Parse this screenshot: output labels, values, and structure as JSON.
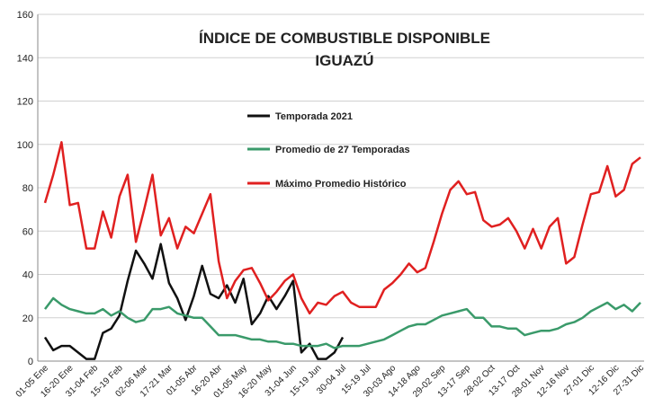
{
  "chart_data": {
    "type": "line",
    "title": "ÍNDICE DE COMBUSTIBLE DISPONIBLE",
    "subtitle": "IGUAZÚ",
    "categories": [
      "01-05 Ene",
      null,
      null,
      "16-20 Ene",
      null,
      null,
      "31-04 Feb",
      null,
      null,
      "15-19 Feb",
      null,
      null,
      "02-06 Mar",
      null,
      null,
      "17-21 Mar",
      null,
      null,
      "01-05 Abr",
      null,
      null,
      "16-20 Abr",
      null,
      null,
      "01-05 May",
      null,
      null,
      "16-20 May",
      null,
      null,
      "31-04 Jun",
      null,
      null,
      "15-19 Jun",
      null,
      null,
      "30-04 Jul",
      null,
      null,
      "15-19 Jul",
      null,
      null,
      "30-03 Ago",
      null,
      null,
      "14-18 Ago",
      null,
      null,
      "29-02 Sep",
      null,
      null,
      "13-17 Sep",
      null,
      null,
      "28-02 Oct",
      null,
      null,
      "13-17 Oct",
      null,
      null,
      "28-01 Nov",
      null,
      null,
      "12-16 Nov",
      null,
      null,
      "27-01 Dic",
      null,
      null,
      "12-16 Dic",
      null,
      null,
      "27-31 Dic"
    ],
    "series": [
      {
        "name": "Temporada 2021",
        "color": "#111111",
        "values": [
          11,
          5,
          7,
          7,
          4,
          1,
          1,
          13,
          15,
          21,
          37,
          51,
          45,
          38,
          54,
          36,
          29,
          19,
          30,
          44,
          31,
          29,
          35,
          27,
          38,
          17,
          22,
          30,
          24,
          30,
          37,
          4,
          8,
          1,
          1,
          4,
          11,
          null,
          null,
          null,
          null,
          null,
          null,
          null,
          null,
          null,
          null,
          null,
          null,
          null,
          null,
          null,
          null,
          null,
          null,
          null,
          null,
          null,
          null,
          null,
          null,
          null,
          null,
          null,
          null,
          null,
          null,
          null,
          null,
          null,
          null,
          null,
          null
        ]
      },
      {
        "name": "Promedio de 27 Temporadas",
        "color": "#3a9a6a",
        "values": [
          24,
          29,
          26,
          24,
          23,
          22,
          22,
          24,
          21,
          23,
          20,
          18,
          19,
          24,
          24,
          25,
          22,
          21,
          20,
          20,
          16,
          12,
          12,
          12,
          11,
          10,
          10,
          9,
          9,
          8,
          8,
          7,
          7,
          7,
          8,
          6,
          7,
          7,
          7,
          8,
          9,
          10,
          12,
          14,
          16,
          17,
          17,
          19,
          21,
          22,
          23,
          24,
          20,
          20,
          16,
          16,
          15,
          15,
          12,
          13,
          14,
          14,
          15,
          17,
          18,
          20,
          23,
          25,
          27,
          24,
          26,
          23,
          27
        ]
      },
      {
        "name": "Máximo Promedio Histórico",
        "color": "#e02020",
        "values": [
          73,
          86,
          101,
          72,
          73,
          52,
          52,
          69,
          57,
          76,
          86,
          55,
          70,
          86,
          58,
          66,
          52,
          62,
          59,
          68,
          77,
          46,
          29,
          37,
          42,
          43,
          36,
          28,
          32,
          37,
          40,
          29,
          22,
          27,
          26,
          30,
          32,
          27,
          25,
          25,
          25,
          33,
          36,
          40,
          45,
          41,
          43,
          55,
          68,
          79,
          83,
          77,
          78,
          65,
          62,
          63,
          66,
          60,
          52,
          61,
          52,
          62,
          66,
          45,
          48,
          63,
          77,
          78,
          90,
          76,
          79,
          91,
          94
        ]
      }
    ],
    "ylim": [
      0,
      160
    ],
    "yticks": [
      0,
      20,
      40,
      60,
      80,
      100,
      120,
      140,
      160
    ],
    "grid": true
  }
}
